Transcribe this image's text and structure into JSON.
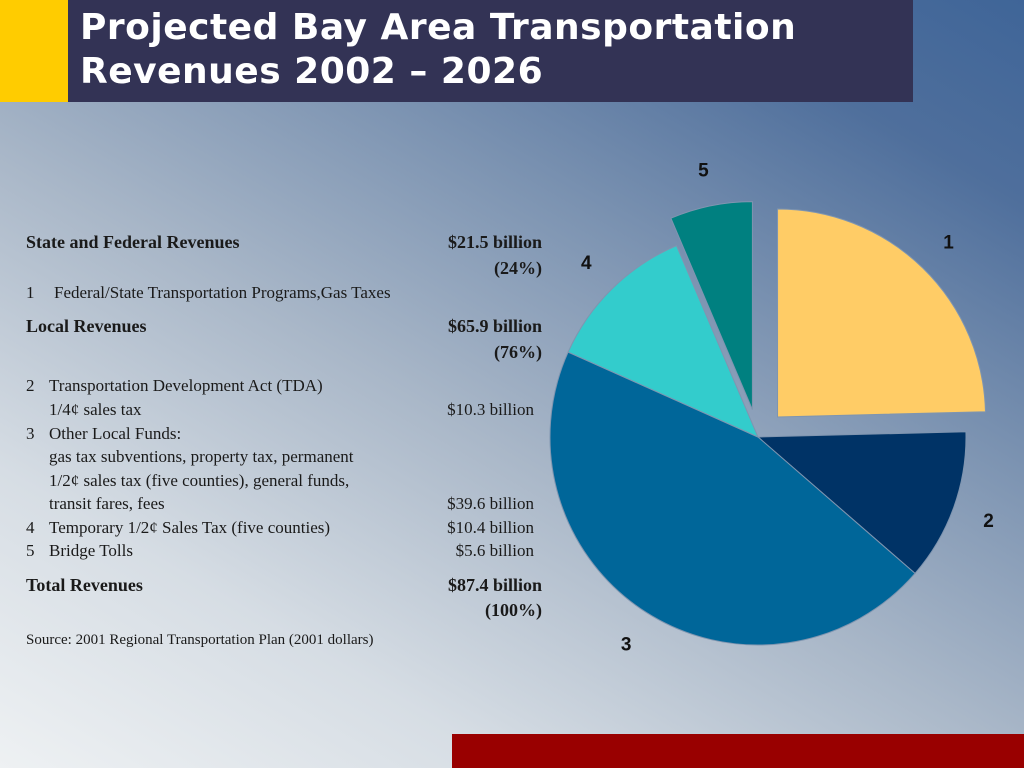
{
  "title": {
    "line1": "Projected Bay Area Transportation",
    "line2": "Revenues 2002 – 2026"
  },
  "table": {
    "state": {
      "label": "State and Federal Revenues",
      "amount": "$21.5 billion",
      "pct": "(24%)",
      "item1_num": "1",
      "item1_text": "Federal/State Transportation Programs,Gas Taxes"
    },
    "local": {
      "label": "Local Revenues",
      "amount": "$65.9 billion",
      "pct": "(76%)"
    },
    "items": [
      {
        "num": "2",
        "lines": [
          "Transportation Development Act (TDA)",
          "1/4¢ sales tax"
        ],
        "amount": "$10.3 billion"
      },
      {
        "num": "3",
        "lines": [
          "Other Local Funds:",
          "gas tax subventions, property tax, permanent",
          "1/2¢ sales tax (five counties), general funds,",
          "transit fares, fees"
        ],
        "amount": "$39.6 billion"
      },
      {
        "num": "4",
        "lines": [
          "Temporary 1/2¢ Sales Tax (five counties)"
        ],
        "amount": "$10.4 billion"
      },
      {
        "num": "5",
        "lines": [
          "Bridge Tolls"
        ],
        "amount": "$5.6 billion"
      }
    ],
    "total": {
      "label": "Total Revenues",
      "amount": "$87.4 billion",
      "pct": "(100%)"
    },
    "source": "Source: 2001 Regional Transportation Plan (2001 dollars)"
  },
  "chart_data": {
    "type": "pie",
    "categories": [
      "1",
      "2",
      "3",
      "4",
      "5"
    ],
    "values": [
      21.5,
      10.3,
      39.6,
      10.4,
      5.6
    ],
    "colors": [
      "#ffcc66",
      "#003366",
      "#006699",
      "#33cccc",
      "#008080"
    ],
    "exploded": [
      "1",
      "5"
    ]
  }
}
